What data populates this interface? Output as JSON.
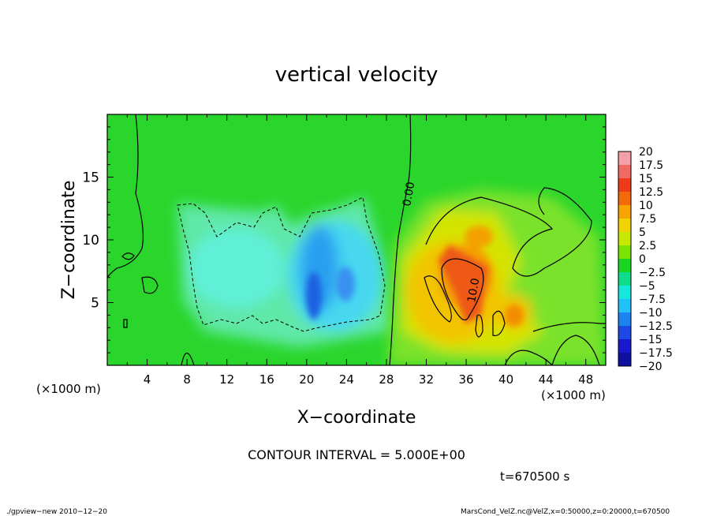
{
  "chart_data": {
    "type": "heatmap",
    "title": "vertical velocity",
    "xlabel": "X−coordinate",
    "ylabel": "Z−coordinate",
    "x_unit_left": "(×1000 m)",
    "x_unit_right": "(×1000 m)",
    "xlim": [
      0,
      50
    ],
    "ylim": [
      0,
      20
    ],
    "x_ticks": [
      "4",
      "8",
      "12",
      "16",
      "20",
      "24",
      "28",
      "32",
      "36",
      "40",
      "44",
      "48"
    ],
    "x_tick_values": [
      4,
      8,
      12,
      16,
      20,
      24,
      28,
      32,
      36,
      40,
      44,
      48
    ],
    "y_ticks": [
      "5",
      "10",
      "15"
    ],
    "y_tick_values": [
      5,
      10,
      15
    ],
    "contour_label": "0.00",
    "contour_label_2": "10.0",
    "contour_interval": "CONTOUR INTERVAL = 5.000E+00",
    "time": "t=670500 s",
    "colorbar": {
      "levels": [
        "20",
        "17.5",
        "15",
        "12.5",
        "10",
        "7.5",
        "5",
        "2.5",
        "0",
        "−2.5",
        "−5",
        "−7.5",
        "−10",
        "−12.5",
        "−15",
        "−17.5",
        "−20"
      ],
      "colors": [
        "#f4a0a8",
        "#f06a62",
        "#ee3c1a",
        "#f46a0a",
        "#f8a400",
        "#f0d400",
        "#c8e800",
        "#7ce400",
        "#18d620",
        "#10dc8c",
        "#18e8dc",
        "#20c0f8",
        "#1c84f0",
        "#1c48e4",
        "#1818cc",
        "#1010a0",
        "#6c10c8"
      ]
    },
    "features": [
      {
        "kind": "updraft",
        "x": 35,
        "z": 7,
        "value": 15
      },
      {
        "kind": "updraft",
        "x": 40,
        "z": 4,
        "value": 10
      },
      {
        "kind": "downdraft",
        "x": 21,
        "z": 7,
        "value": -10
      },
      {
        "kind": "downdraft",
        "x": 14,
        "z": 8,
        "value": -5
      }
    ]
  },
  "footer_left": "./gpview−new  2010−12−20",
  "footer_right": "MarsCond_VelZ.nc@VelZ,x=0:50000,z=0:20000,t=670500"
}
